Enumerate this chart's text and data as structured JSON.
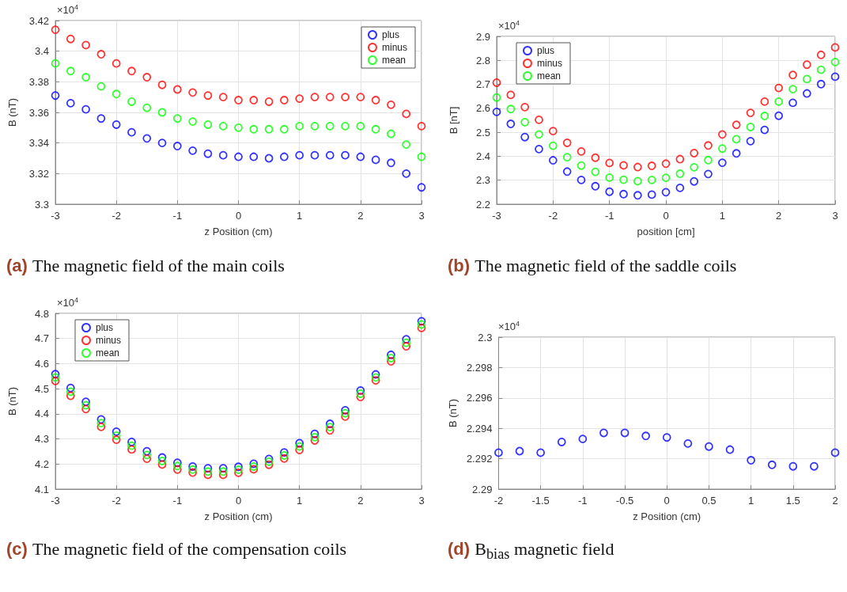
{
  "chart_data": [
    {
      "type": "scatter",
      "title": "(a) The magnetic field of the main coils",
      "xlabel": "z Position (cm)",
      "ylabel": "B (nT)",
      "annotations": [
        "×10$^{4}$"
      ],
      "marker": "circle",
      "grid": true,
      "legend": "top right",
      "x": [
        -3,
        -2.75,
        -2.5,
        -2.25,
        -2,
        -1.75,
        -1.5,
        -1.25,
        -1,
        -0.75,
        -0.5,
        -0.25,
        0,
        0.25,
        0.5,
        0.75,
        1,
        1.25,
        1.5,
        1.75,
        2,
        2.25,
        2.5,
        2.75,
        3
      ],
      "xlim": [
        -3,
        3
      ],
      "xticks": [
        -3,
        -2,
        -1,
        0,
        1,
        2,
        3
      ],
      "ylim": [
        3.3,
        3.42
      ],
      "yticks": [
        3.3,
        3.32,
        3.34,
        3.36,
        3.38,
        3.4,
        3.42
      ],
      "series": [
        {
          "name": "plus",
          "color": "#0000ff",
          "values": [
            3.371,
            3.366,
            3.362,
            3.356,
            3.352,
            3.347,
            3.343,
            3.34,
            3.338,
            3.335,
            3.333,
            3.332,
            3.331,
            3.331,
            3.33,
            3.331,
            3.332,
            3.332,
            3.332,
            3.332,
            3.331,
            3.329,
            3.327,
            3.32,
            3.311
          ]
        },
        {
          "name": "minus",
          "color": "#ff0000",
          "values": [
            3.414,
            3.408,
            3.404,
            3.398,
            3.392,
            3.387,
            3.383,
            3.378,
            3.375,
            3.373,
            3.371,
            3.37,
            3.368,
            3.368,
            3.367,
            3.368,
            3.369,
            3.37,
            3.37,
            3.37,
            3.37,
            3.368,
            3.365,
            3.359,
            3.351
          ]
        },
        {
          "name": "mean",
          "color": "#00ff00",
          "values": [
            3.392,
            3.387,
            3.383,
            3.377,
            3.372,
            3.367,
            3.363,
            3.36,
            3.356,
            3.354,
            3.352,
            3.351,
            3.35,
            3.349,
            3.349,
            3.349,
            3.351,
            3.351,
            3.351,
            3.351,
            3.351,
            3.349,
            3.346,
            3.339,
            3.331
          ]
        }
      ]
    },
    {
      "type": "scatter",
      "title": "(b) The magnetic field of the saddle coils",
      "xlabel": "position [cm]",
      "ylabel": "B [nT]",
      "annotations": [
        "×10$^{4}$"
      ],
      "marker": "circle",
      "grid": true,
      "legend": "top left",
      "x": [
        -3,
        -2.75,
        -2.5,
        -2.25,
        -2,
        -1.75,
        -1.5,
        -1.25,
        -1,
        -0.75,
        -0.5,
        -0.25,
        0,
        0.25,
        0.5,
        0.75,
        1,
        1.25,
        1.5,
        1.75,
        2,
        2.25,
        2.5,
        2.75,
        3
      ],
      "xlim": [
        -3,
        3
      ],
      "xticks": [
        -3,
        -2,
        -1,
        0,
        1,
        2,
        3
      ],
      "ylim": [
        2.2,
        2.9
      ],
      "yticks": [
        2.2,
        2.3,
        2.4,
        2.5,
        2.6,
        2.7,
        2.8,
        2.9
      ],
      "series": [
        {
          "name": "plus",
          "color": "#0000ff",
          "values": [
            2.585,
            2.535,
            2.48,
            2.43,
            2.383,
            2.336,
            2.301,
            2.275,
            2.252,
            2.242,
            2.237,
            2.24,
            2.25,
            2.268,
            2.295,
            2.326,
            2.373,
            2.412,
            2.463,
            2.51,
            2.569,
            2.623,
            2.662,
            2.701,
            2.732
          ]
        },
        {
          "name": "minus",
          "color": "#ff0000",
          "values": [
            2.707,
            2.656,
            2.605,
            2.552,
            2.505,
            2.456,
            2.42,
            2.394,
            2.372,
            2.362,
            2.355,
            2.36,
            2.369,
            2.388,
            2.413,
            2.445,
            2.491,
            2.531,
            2.581,
            2.628,
            2.685,
            2.739,
            2.782,
            2.823,
            2.854
          ]
        },
        {
          "name": "mean",
          "color": "#00ff00",
          "values": [
            2.645,
            2.597,
            2.542,
            2.491,
            2.444,
            2.396,
            2.361,
            2.335,
            2.311,
            2.302,
            2.296,
            2.301,
            2.31,
            2.327,
            2.354,
            2.384,
            2.432,
            2.471,
            2.522,
            2.568,
            2.628,
            2.68,
            2.722,
            2.761,
            2.793
          ]
        }
      ]
    },
    {
      "type": "scatter",
      "title": "(c) The magnetic field of the compensation coils",
      "xlabel": "z Position (cm)",
      "ylabel": "B (nT)",
      "annotations": [
        "×10$^{4}$"
      ],
      "marker": "circle",
      "grid": true,
      "legend": "top left",
      "x": [
        -3,
        -2.75,
        -2.5,
        -2.25,
        -2,
        -1.75,
        -1.5,
        -1.25,
        -1,
        -0.75,
        -0.5,
        -0.25,
        0,
        0.25,
        0.5,
        0.75,
        1,
        1.25,
        1.5,
        1.75,
        2,
        2.25,
        2.5,
        2.75,
        3
      ],
      "xlim": [
        -3,
        3
      ],
      "xticks": [
        -3,
        -2,
        -1,
        0,
        1,
        2,
        3
      ],
      "ylim": [
        4.1,
        4.8
      ],
      "yticks": [
        4.1,
        4.2,
        4.3,
        4.4,
        4.5,
        4.6,
        4.7,
        4.8
      ],
      "series": [
        {
          "name": "plus",
          "color": "#0000ff",
          "values": [
            4.558,
            4.503,
            4.448,
            4.378,
            4.329,
            4.288,
            4.251,
            4.226,
            4.205,
            4.19,
            4.183,
            4.183,
            4.189,
            4.201,
            4.22,
            4.246,
            4.283,
            4.32,
            4.36,
            4.414,
            4.493,
            4.557,
            4.635,
            4.697,
            4.769
          ]
        },
        {
          "name": "minus",
          "color": "#ff0000",
          "values": [
            4.531,
            4.472,
            4.419,
            4.348,
            4.297,
            4.258,
            4.221,
            4.198,
            4.178,
            4.166,
            4.157,
            4.157,
            4.165,
            4.179,
            4.197,
            4.222,
            4.256,
            4.294,
            4.334,
            4.389,
            4.467,
            4.533,
            4.609,
            4.669,
            4.742
          ]
        },
        {
          "name": "mean",
          "color": "#00ff00",
          "values": [
            4.545,
            4.488,
            4.434,
            4.363,
            4.313,
            4.273,
            4.236,
            4.212,
            4.192,
            4.178,
            4.17,
            4.17,
            4.177,
            4.19,
            4.209,
            4.234,
            4.27,
            4.307,
            4.347,
            4.402,
            4.48,
            4.545,
            4.622,
            4.683,
            4.756
          ]
        }
      ]
    },
    {
      "type": "scatter",
      "title": "(d) B$_{bias}$ magnetic field",
      "xlabel": "z Position (cm)",
      "ylabel": "B (nT)",
      "annotations": [
        "×10$^{4}$"
      ],
      "marker": "circle",
      "grid": true,
      "x": [
        -2,
        -1.75,
        -1.5,
        -1.25,
        -1,
        -0.75,
        -0.5,
        -0.25,
        0,
        0.25,
        0.5,
        0.75,
        1,
        1.25,
        1.5,
        1.75,
        2
      ],
      "xlim": [
        -2,
        2
      ],
      "xticks": [
        -2,
        -1.5,
        -1,
        -0.5,
        0,
        0.5,
        1,
        1.5,
        2
      ],
      "ylim": [
        2.29,
        2.3
      ],
      "yticks": [
        2.29,
        2.292,
        2.294,
        2.296,
        2.298,
        2.3
      ],
      "series": [
        {
          "color": "#0000ff",
          "values": [
            2.2924,
            2.2925,
            2.2924,
            2.2931,
            2.2933,
            2.2937,
            2.2937,
            2.2935,
            2.2934,
            2.293,
            2.2928,
            2.2926,
            2.2919,
            2.2916,
            2.2915,
            2.2915,
            2.2924
          ]
        }
      ]
    }
  ]
}
